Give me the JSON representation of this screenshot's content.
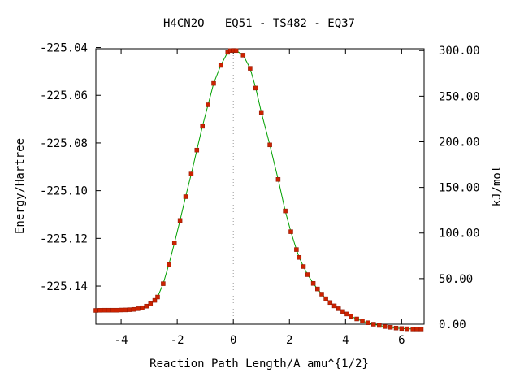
{
  "chart_data": {
    "type": "line",
    "title": "H4CN2O   EQ51 - TS482 - EQ37",
    "xlabel": "Reaction Path Length/A amu^{1/2}",
    "ylabel": "Energy/Hartree",
    "y2label": "kJ/mol",
    "xlim": [
      -4.9,
      6.8
    ],
    "ylim": [
      -225.156,
      -225.0405
    ],
    "y2lim": [
      0.0,
      302.0
    ],
    "xticks": [
      -4,
      -2,
      0,
      2,
      4,
      6
    ],
    "xtick_labels": [
      "-4",
      "-2",
      "0",
      "2",
      "4",
      "6"
    ],
    "yticks": [
      -225.04,
      -225.06,
      -225.08,
      -225.1,
      -225.12,
      -225.14
    ],
    "ytick_labels": [
      "-225.04",
      "-225.06",
      "-225.08",
      "-225.10",
      "-225.12",
      "-225.14"
    ],
    "y2ticks": [
      300,
      250,
      200,
      150,
      100,
      50,
      0
    ],
    "y2tick_labels": [
      "300.00",
      "250.00",
      "200.00",
      "150.00",
      "100.00",
      "50.00",
      "0.00"
    ],
    "ts_line_x": 0,
    "grid": false,
    "legend": "none",
    "colors": {
      "curve": "#00a000",
      "points": "#cc2200",
      "ts_line": "#9a9a9a",
      "axes": "#000000"
    },
    "series": [
      {
        "x": [
          -4.9,
          -4.75,
          -4.6,
          -4.45,
          -4.3,
          -4.15,
          -4.0,
          -3.85,
          -3.7,
          -3.55,
          -3.4,
          -3.25,
          -3.1,
          -2.95,
          -2.8,
          -2.7,
          -2.5,
          -2.3,
          -2.1,
          -1.9,
          -1.7,
          -1.5,
          -1.3,
          -1.1,
          -0.9,
          -0.7,
          -0.45,
          -0.2,
          -0.1,
          0.0,
          0.1,
          0.35,
          0.6,
          0.8,
          1.0,
          1.3,
          1.6,
          1.85,
          2.05,
          2.25,
          2.35,
          2.5,
          2.65,
          2.85,
          3.0,
          3.15,
          3.3,
          3.45,
          3.6,
          3.75,
          3.9,
          4.05,
          4.2,
          4.4,
          4.6,
          4.8,
          5.0,
          5.2,
          5.4,
          5.6,
          5.8,
          6.0,
          6.2,
          6.4,
          6.55,
          6.7
        ],
        "y": [
          -225.1502,
          -225.15015,
          -225.1501,
          -225.1501,
          -225.1501,
          -225.1501,
          -225.15005,
          -225.15,
          -225.1499,
          -225.14975,
          -225.1495,
          -225.1491,
          -225.1484,
          -225.1474,
          -225.146,
          -225.1446,
          -225.139,
          -225.131,
          -225.122,
          -225.1125,
          -225.1025,
          -225.093,
          -225.083,
          -225.073,
          -225.064,
          -225.055,
          -225.0475,
          -225.042,
          -225.0413,
          -225.0412,
          -225.0413,
          -225.0432,
          -225.0487,
          -225.057,
          -225.0672,
          -225.0808,
          -225.0953,
          -225.1085,
          -225.1172,
          -225.1247,
          -225.128,
          -225.1318,
          -225.1352,
          -225.1389,
          -225.1412,
          -225.1434,
          -225.1453,
          -225.1469,
          -225.1483,
          -225.1495,
          -225.1507,
          -225.1517,
          -225.1527,
          -225.1538,
          -225.1547,
          -225.1554,
          -225.156,
          -225.1565,
          -225.157,
          -225.1573,
          -225.1576,
          -225.1578,
          -225.1579,
          -225.158,
          -225.158,
          -225.158
        ]
      }
    ]
  }
}
